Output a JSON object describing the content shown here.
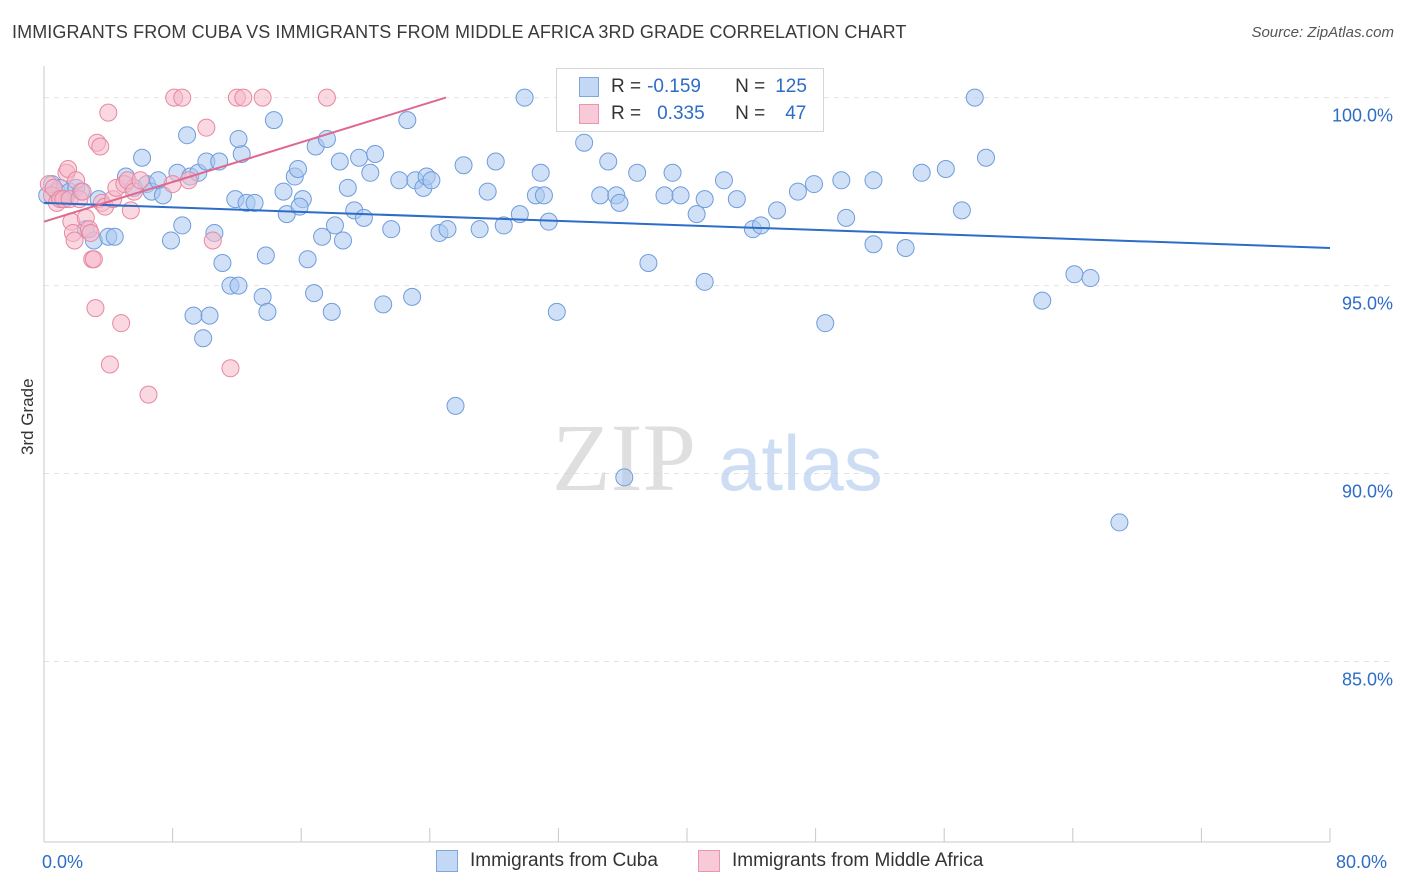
{
  "title": "IMMIGRANTS FROM CUBA VS IMMIGRANTS FROM MIDDLE AFRICA 3RD GRADE CORRELATION CHART",
  "source": "Source: ZipAtlas.com",
  "watermark": {
    "zip": "ZIP",
    "atlas": "atlas"
  },
  "colors": {
    "blue": "#2d6cc8",
    "blue_fill": "#a9c8f0",
    "pink": "#e0688f",
    "pink_fill": "#f5b8cb",
    "grid": "#e2e2e2"
  },
  "legend": {
    "rows": [
      {
        "r_label": "R =",
        "r_value": "-0.159",
        "n_label": "N =",
        "n_value": "125"
      },
      {
        "r_label": "R =",
        "r_value": "0.335",
        "n_label": "N =",
        "n_value": "47"
      }
    ]
  },
  "bottom_legend": {
    "cuba": "Immigrants from Cuba",
    "africa": "Immigrants from Middle Africa"
  },
  "chart_data": {
    "type": "scatter",
    "ylabel": "3rd Grade",
    "xlabel": "",
    "xlim": [
      0,
      80
    ],
    "ylim": [
      80.2,
      101.0
    ],
    "x_tick_labels": [
      "0.0%",
      "80.0%"
    ],
    "y_ticks": [
      100,
      95,
      90,
      85
    ],
    "y_tick_labels": [
      "100.0%",
      "95.0%",
      "90.0%",
      "85.0%"
    ],
    "series": [
      {
        "name": "Immigrants from Cuba",
        "R": -0.159,
        "N": 125,
        "trend": {
          "x": [
            0,
            80
          ],
          "y": [
            97.2,
            96.0
          ]
        },
        "points": [
          [
            0.2,
            97.4
          ],
          [
            0.5,
            97.7
          ],
          [
            0.8,
            97.5
          ],
          [
            1.0,
            97.6
          ],
          [
            1.3,
            97.3
          ],
          [
            1.6,
            97.5
          ],
          [
            2.0,
            97.6
          ],
          [
            2.3,
            97.5
          ],
          [
            2.6,
            96.5
          ],
          [
            3.1,
            96.2
          ],
          [
            3.4,
            97.3
          ],
          [
            4.0,
            96.3
          ],
          [
            4.4,
            96.3
          ],
          [
            5.1,
            97.9
          ],
          [
            5.6,
            97.6
          ],
          [
            6.1,
            98.4
          ],
          [
            6.4,
            97.7
          ],
          [
            6.7,
            97.5
          ],
          [
            7.1,
            97.8
          ],
          [
            7.4,
            97.4
          ],
          [
            7.9,
            96.2
          ],
          [
            8.3,
            98.0
          ],
          [
            8.6,
            96.6
          ],
          [
            8.9,
            99.0
          ],
          [
            9.1,
            97.9
          ],
          [
            9.3,
            94.2
          ],
          [
            9.6,
            98.0
          ],
          [
            9.9,
            93.6
          ],
          [
            10.1,
            98.3
          ],
          [
            10.3,
            94.2
          ],
          [
            10.6,
            96.4
          ],
          [
            10.9,
            98.3
          ],
          [
            11.1,
            95.6
          ],
          [
            11.6,
            95.0
          ],
          [
            11.9,
            97.3
          ],
          [
            12.1,
            95.0
          ],
          [
            12.3,
            98.5
          ],
          [
            12.6,
            97.2
          ],
          [
            13.1,
            97.2
          ],
          [
            13.6,
            94.7
          ],
          [
            13.8,
            95.8
          ],
          [
            13.9,
            94.3
          ],
          [
            14.3,
            99.4
          ],
          [
            14.9,
            97.5
          ],
          [
            15.1,
            96.9
          ],
          [
            15.6,
            97.9
          ],
          [
            15.8,
            98.1
          ],
          [
            16.1,
            97.3
          ],
          [
            16.4,
            95.7
          ],
          [
            16.8,
            94.8
          ],
          [
            16.9,
            98.7
          ],
          [
            17.3,
            96.3
          ],
          [
            17.6,
            98.9
          ],
          [
            17.9,
            94.3
          ],
          [
            18.1,
            96.6
          ],
          [
            18.4,
            98.3
          ],
          [
            18.6,
            96.2
          ],
          [
            18.9,
            97.6
          ],
          [
            19.3,
            97.0
          ],
          [
            19.6,
            98.4
          ],
          [
            19.9,
            96.8
          ],
          [
            20.3,
            98.0
          ],
          [
            20.6,
            98.5
          ],
          [
            21.1,
            94.5
          ],
          [
            21.6,
            96.5
          ],
          [
            22.1,
            97.8
          ],
          [
            22.6,
            99.4
          ],
          [
            22.9,
            94.7
          ],
          [
            23.1,
            97.8
          ],
          [
            23.6,
            97.6
          ],
          [
            23.8,
            97.9
          ],
          [
            24.1,
            97.8
          ],
          [
            24.6,
            96.4
          ],
          [
            25.1,
            96.5
          ],
          [
            25.6,
            91.8
          ],
          [
            26.1,
            98.2
          ],
          [
            27.1,
            96.5
          ],
          [
            27.6,
            97.5
          ],
          [
            28.1,
            98.3
          ],
          [
            28.6,
            96.6
          ],
          [
            29.6,
            96.9
          ],
          [
            29.9,
            100.0
          ],
          [
            30.6,
            97.4
          ],
          [
            30.9,
            98.0
          ],
          [
            31.1,
            97.4
          ],
          [
            31.4,
            96.7
          ],
          [
            31.9,
            94.3
          ],
          [
            33.6,
            98.8
          ],
          [
            34.6,
            97.4
          ],
          [
            35.6,
            97.4
          ],
          [
            35.8,
            97.2
          ],
          [
            36.1,
            89.9
          ],
          [
            36.9,
            98.0
          ],
          [
            37.6,
            95.6
          ],
          [
            38.6,
            97.4
          ],
          [
            39.1,
            98.0
          ],
          [
            39.6,
            97.4
          ],
          [
            40.6,
            96.9
          ],
          [
            41.1,
            97.3
          ],
          [
            41.1,
            95.1
          ],
          [
            42.3,
            97.8
          ],
          [
            43.1,
            97.3
          ],
          [
            44.1,
            96.5
          ],
          [
            44.6,
            96.6
          ],
          [
            45.6,
            97.0
          ],
          [
            46.9,
            97.5
          ],
          [
            47.9,
            97.7
          ],
          [
            48.6,
            94.0
          ],
          [
            49.6,
            97.8
          ],
          [
            49.9,
            96.8
          ],
          [
            51.6,
            96.1
          ],
          [
            51.6,
            97.8
          ],
          [
            53.6,
            96.0
          ],
          [
            54.6,
            98.0
          ],
          [
            56.1,
            98.1
          ],
          [
            57.1,
            97.0
          ],
          [
            57.9,
            100.0
          ],
          [
            58.6,
            98.4
          ],
          [
            62.1,
            94.6
          ],
          [
            64.1,
            95.3
          ],
          [
            65.1,
            95.2
          ],
          [
            66.9,
            88.7
          ],
          [
            35.1,
            98.3
          ],
          [
            12.1,
            98.9
          ],
          [
            15.9,
            97.1
          ]
        ]
      },
      {
        "name": "Immigrants from Middle Africa",
        "R": 0.335,
        "N": 47,
        "trend": {
          "x": [
            0,
            25
          ],
          "y": [
            96.7,
            100.0
          ]
        },
        "points": [
          [
            0.3,
            97.7
          ],
          [
            0.5,
            97.4
          ],
          [
            0.6,
            97.6
          ],
          [
            0.8,
            97.2
          ],
          [
            1.0,
            97.3
          ],
          [
            1.2,
            97.3
          ],
          [
            1.4,
            98.0
          ],
          [
            1.5,
            98.1
          ],
          [
            1.6,
            97.3
          ],
          [
            1.7,
            96.7
          ],
          [
            1.8,
            96.4
          ],
          [
            1.9,
            96.2
          ],
          [
            2.0,
            97.8
          ],
          [
            2.2,
            97.3
          ],
          [
            2.4,
            97.5
          ],
          [
            2.6,
            96.8
          ],
          [
            2.8,
            96.5
          ],
          [
            2.9,
            96.4
          ],
          [
            3.0,
            95.7
          ],
          [
            3.1,
            95.7
          ],
          [
            3.2,
            94.4
          ],
          [
            3.3,
            98.8
          ],
          [
            3.5,
            98.7
          ],
          [
            3.6,
            97.2
          ],
          [
            3.8,
            97.1
          ],
          [
            4.0,
            99.6
          ],
          [
            4.1,
            92.9
          ],
          [
            4.3,
            97.3
          ],
          [
            4.5,
            97.6
          ],
          [
            4.8,
            94.0
          ],
          [
            5.0,
            97.7
          ],
          [
            5.2,
            97.8
          ],
          [
            5.4,
            97.0
          ],
          [
            5.6,
            97.5
          ],
          [
            6.0,
            97.8
          ],
          [
            6.5,
            92.1
          ],
          [
            8.0,
            97.7
          ],
          [
            8.1,
            100.0
          ],
          [
            8.6,
            100.0
          ],
          [
            9.0,
            97.8
          ],
          [
            10.1,
            99.2
          ],
          [
            10.5,
            96.2
          ],
          [
            11.6,
            92.8
          ],
          [
            12.0,
            100.0
          ],
          [
            12.4,
            100.0
          ],
          [
            13.6,
            100.0
          ],
          [
            17.6,
            100.0
          ]
        ]
      }
    ]
  }
}
